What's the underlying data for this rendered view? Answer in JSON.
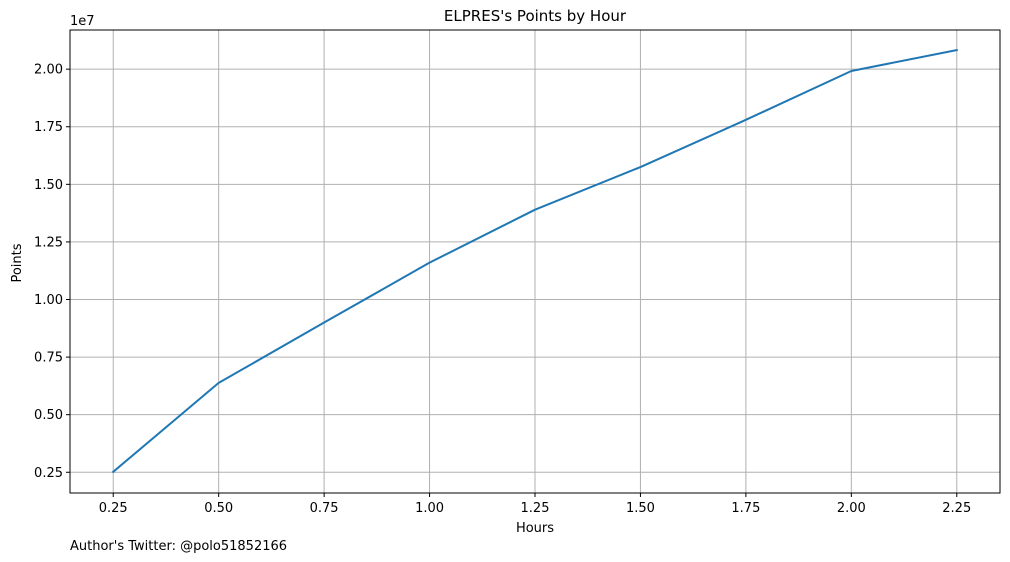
{
  "chart_data": {
    "type": "line",
    "title": "ELPRES's Points by Hour",
    "xlabel": "Hours",
    "ylabel": "Points",
    "y_offset_label": "1e7",
    "y_scale_factor": 10000000,
    "x_ticks": [
      0.25,
      0.5,
      0.75,
      1.0,
      1.25,
      1.5,
      1.75,
      2.0,
      2.25
    ],
    "x_tick_labels": [
      "0.25",
      "0.50",
      "0.75",
      "1.00",
      "1.25",
      "1.50",
      "1.75",
      "2.00",
      "2.25"
    ],
    "y_ticks": [
      2500000,
      5000000,
      7500000,
      10000000,
      12500000,
      15000000,
      17500000,
      20000000
    ],
    "y_tick_labels": [
      "0.25",
      "0.50",
      "0.75",
      "1.00",
      "1.25",
      "1.50",
      "1.75",
      "2.00"
    ],
    "xlim": [
      0.1475,
      2.3525
    ],
    "ylim": [
      1600000,
      21700000
    ],
    "grid": true,
    "series": [
      {
        "color": "#1f77b4",
        "x": [
          0.25,
          0.5,
          0.75,
          1.0,
          1.25,
          1.5,
          1.75,
          2.0,
          2.25
        ],
        "y": [
          2520000,
          6380000,
          9000000,
          11600000,
          13900000,
          15750000,
          17800000,
          19920000,
          20830000
        ]
      }
    ]
  },
  "footer": {
    "author_text": "Author's Twitter: @polo51852166"
  }
}
